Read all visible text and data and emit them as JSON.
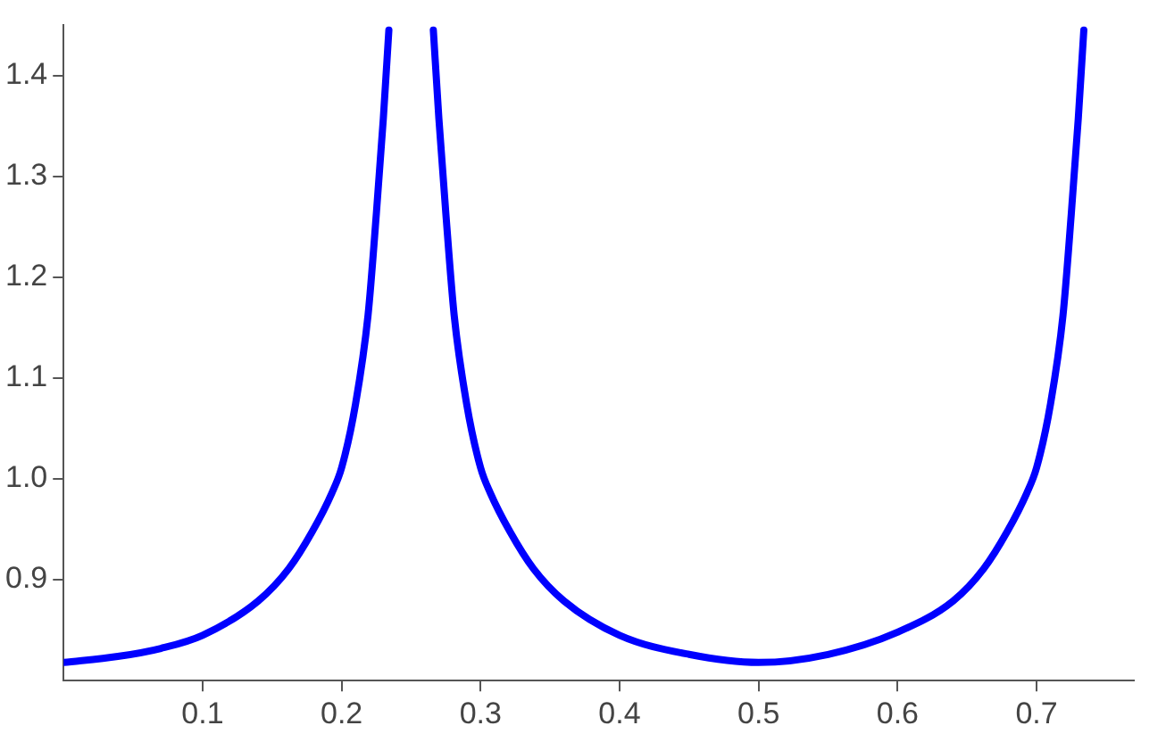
{
  "chart_data": {
    "type": "line",
    "xlim": [
      0,
      0.77
    ],
    "ylim": [
      0.8,
      1.45
    ],
    "xticks": [
      0.1,
      0.2,
      0.3,
      0.4,
      0.5,
      0.6,
      0.7
    ],
    "yticks": [
      0.9,
      {
        "value": 1,
        "label": "1.0"
      },
      1.1,
      1.2,
      1.3,
      1.4
    ],
    "marker": "none",
    "line_style": "solid",
    "series": [
      {
        "color": "#0000ff",
        "x": [
          0,
          0.039,
          0.07,
          0.1,
          0.14,
          0.162,
          0.179,
          0.193,
          0.2,
          0.21,
          0.219,
          0.225,
          0.23,
          0.234,
          0.25,
          0.266,
          0.27,
          0.275,
          0.281,
          0.29,
          0.3,
          0.307,
          0.321,
          0.338,
          0.36,
          0.4,
          0.45,
          0.5,
          0.55,
          0.6,
          0.64,
          0.662,
          0.679,
          0.693,
          0.7,
          0.71,
          0.719,
          0.725,
          0.73,
          0.734
        ],
        "values": [
          0.818,
          0.824,
          0.832,
          0.845,
          0.879,
          0.911,
          0.948,
          0.986,
          1.011,
          1.074,
          1.162,
          1.263,
          1.357,
          1.445,
          null,
          1.445,
          1.357,
          1.263,
          1.162,
          1.074,
          1.011,
          0.986,
          0.948,
          0.911,
          0.879,
          0.845,
          0.826,
          0.818,
          0.826,
          0.848,
          0.879,
          0.911,
          0.948,
          0.986,
          1.011,
          1.074,
          1.162,
          1.263,
          1.357,
          1.445
        ]
      }
    ]
  }
}
